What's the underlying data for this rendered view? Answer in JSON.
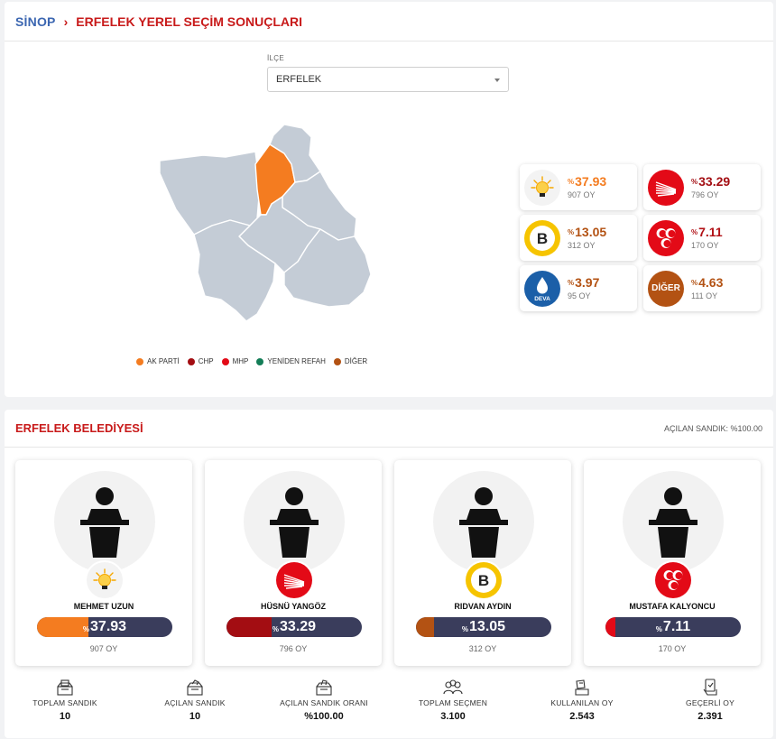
{
  "header": {
    "city": "SİNOP",
    "separator": "›",
    "title": "ERFELEK YEREL SEÇİM SONUÇLARI"
  },
  "district_select": {
    "label": "İLÇE",
    "value": "ERFELEK"
  },
  "legend": [
    {
      "label": "AK PARTİ",
      "color": "#f47c20"
    },
    {
      "label": "CHP",
      "color": "#a30d12"
    },
    {
      "label": "MHP",
      "color": "#e30a17"
    },
    {
      "label": "YENİDEN REFAH",
      "color": "#137d57"
    },
    {
      "label": "DİĞER",
      "color": "#b35213"
    }
  ],
  "party_results": [
    {
      "party": "AK PARTİ",
      "logo": "akparti-bulb-icon",
      "pct_sign": "%",
      "pct": "37.93",
      "votes": "907 OY",
      "color": "#f47c20"
    },
    {
      "party": "CHP",
      "logo": "chp-arrows-icon",
      "pct_sign": "%",
      "pct": "33.29",
      "votes": "796 OY",
      "color": "#a30d12"
    },
    {
      "party": "BBP",
      "logo": "bbp-b-icon",
      "pct_sign": "%",
      "pct": "13.05",
      "votes": "312 OY",
      "color": "#b35213"
    },
    {
      "party": "MHP",
      "logo": "mhp-crescents-icon",
      "pct_sign": "%",
      "pct": "7.11",
      "votes": "170 OY",
      "color": "#b11116"
    },
    {
      "party": "DEVA",
      "logo": "deva-drop-icon",
      "logo_text": "DEVA",
      "pct_sign": "%",
      "pct": "3.97",
      "votes": "95 OY",
      "color": "#b35213"
    },
    {
      "party": "DİĞER",
      "logo": "diger-icon",
      "logo_text": "DİĞER",
      "pct_sign": "%",
      "pct": "4.63",
      "votes": "111 OY",
      "color": "#b35213"
    }
  ],
  "municipality": {
    "title": "ERFELEK BELEDİYESİ",
    "opened_ballots": "AÇILAN SANDIK: %100.00"
  },
  "candidates": [
    {
      "name": "MEHMET UZUN",
      "logo": "akparti-bulb-icon",
      "pct_sign": "%",
      "pct": "37.93",
      "share": 37.93,
      "votes": "907 OY",
      "color": "#f47c20"
    },
    {
      "name": "HÜSNÜ YANGÖZ",
      "logo": "chp-arrows-icon",
      "pct_sign": "%",
      "pct": "33.29",
      "share": 33.29,
      "votes": "796 OY",
      "color": "#a30d12"
    },
    {
      "name": "RIDVAN AYDIN",
      "logo": "bbp-b-icon",
      "pct_sign": "%",
      "pct": "13.05",
      "share": 13.05,
      "votes": "312 OY",
      "color": "#b35213"
    },
    {
      "name": "MUSTAFA KALYONCU",
      "logo": "mhp-crescents-icon",
      "pct_sign": "%",
      "pct": "7.11",
      "share": 7.11,
      "votes": "170 OY",
      "color": "#e30a17"
    }
  ],
  "stats": [
    {
      "label": "TOPLAM SANDIK",
      "value": "10",
      "icon": "ballot-box-icon"
    },
    {
      "label": "AÇILAN SANDIK",
      "value": "10",
      "icon": "open-ballot-box-icon"
    },
    {
      "label": "AÇILAN SANDIK ORANI",
      "value": "%100.00",
      "icon": "ballot-box-ratio-icon"
    },
    {
      "label": "TOPLAM SEÇMEN",
      "value": "3.100",
      "icon": "voters-icon"
    },
    {
      "label": "KULLANILAN OY",
      "value": "2.543",
      "icon": "vote-cast-icon"
    },
    {
      "label": "GEÇERLİ OY",
      "value": "2.391",
      "icon": "valid-vote-icon"
    }
  ]
}
